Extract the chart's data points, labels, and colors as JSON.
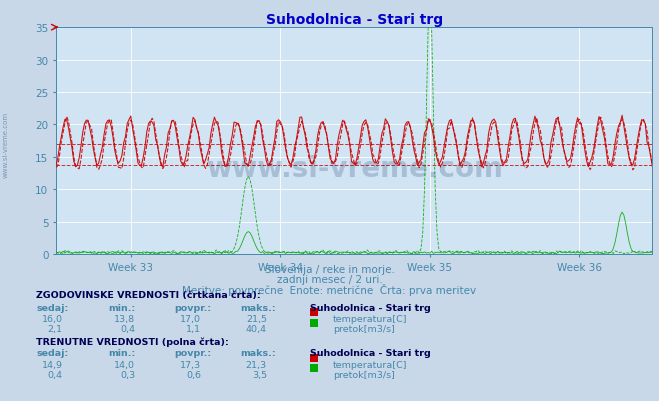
{
  "title": "Suhodolnica - Stari trg",
  "title_color": "#0000cc",
  "bg_color": "#c8d8e8",
  "plot_bg_color": "#d0e4f4",
  "grid_color": "#ffffff",
  "x_weeks": [
    "Week 33",
    "Week 34",
    "Week 35",
    "Week 36"
  ],
  "ylim": [
    0,
    35
  ],
  "n_points": 336,
  "temp_hist_color": "#cc0000",
  "temp_curr_color": "#cc0000",
  "flow_hist_color": "#00aa00",
  "flow_curr_color": "#00aa00",
  "temp_hist_min": 13.8,
  "temp_hist_avg": 17.0,
  "temp_hist_max": 21.5,
  "temp_curr_min": 14.0,
  "temp_curr_avg": 17.3,
  "temp_curr_max": 21.3,
  "flow_hist_min": 0.4,
  "flow_hist_avg": 1.1,
  "flow_hist_max": 40.4,
  "flow_curr_min": 0.3,
  "flow_curr_avg": 0.6,
  "flow_curr_max": 3.5,
  "subtitle1": "Slovenija / reke in morje.",
  "subtitle2": "zadnji mesec / 2 uri.",
  "subtitle3": "Meritve: povprečne  Enote: metrične  Črta: prva meritev",
  "text_color": "#4488aa",
  "label_color": "#4488aa",
  "watermark": "www.si-vreme.com",
  "watermark_color": "#1a3a6a",
  "sidebar_text": "www.si-vreme.com",
  "sidebar_color": "#7090b0",
  "icon_temp_color": "#cc0000",
  "icon_flow_color": "#00aa00",
  "hist_sedaj": "16,0",
  "hist_min_temp": "13,8",
  "hist_avg_temp": "17,0",
  "hist_max_temp": "21,5",
  "hist_sedaj_flow": "2,1",
  "hist_min_flow": "0,4",
  "hist_avg_flow": "1,1",
  "hist_max_flow": "40,4",
  "curr_sedaj_temp": "14,9",
  "curr_min_temp": "14,0",
  "curr_avg_temp": "17,3",
  "curr_max_temp": "21,3",
  "curr_sedaj_flow": "0,4",
  "curr_min_flow": "0,3",
  "curr_avg_flow": "0,6",
  "curr_max_flow": "3,5"
}
